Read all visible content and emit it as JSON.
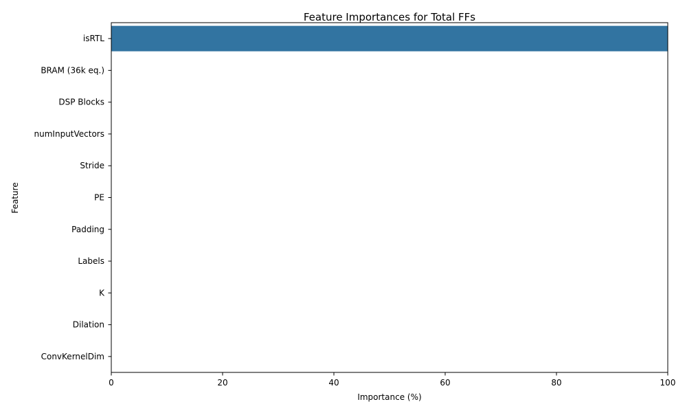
{
  "chart_data": {
    "type": "bar",
    "orientation": "horizontal",
    "title": "Feature Importances for Total FFs",
    "xlabel": "Importance (%)",
    "ylabel": "Feature",
    "categories": [
      "isRTL",
      "BRAM (36k eq.)",
      "DSP Blocks",
      "numInputVectors",
      "Stride",
      "PE",
      "Padding",
      "Labels",
      "K",
      "Dilation",
      "ConvKernelDim"
    ],
    "values": [
      100,
      0,
      0,
      0,
      0,
      0,
      0,
      0,
      0,
      0,
      0
    ],
    "xlim": [
      0,
      100
    ],
    "xticks": [
      0,
      20,
      40,
      60,
      80,
      100
    ],
    "grid": false,
    "legend": "none",
    "bar_color": "#3274a1"
  }
}
